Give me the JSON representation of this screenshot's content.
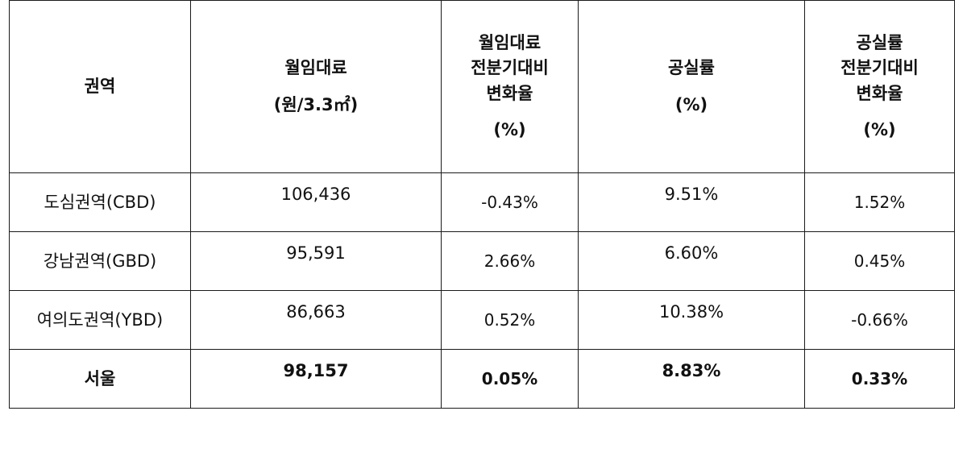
{
  "table": {
    "headers": [
      {
        "lines": [
          "권역"
        ]
      },
      {
        "lines": [
          "월임대료",
          "(원/3.3㎡)"
        ]
      },
      {
        "lines": [
          "월임대료",
          "전분기대비",
          "변화율",
          "(%)"
        ]
      },
      {
        "lines": [
          "공실률",
          "(%)"
        ]
      },
      {
        "lines": [
          "공실률",
          "전분기대비",
          "변화율",
          "(%)"
        ]
      }
    ],
    "rows": [
      {
        "region": "도심권역(CBD)",
        "rent": "106,436",
        "rent_change": "-0.43%",
        "vacancy": "9.51%",
        "vacancy_change": "1.52%"
      },
      {
        "region": "강남권역(GBD)",
        "rent": "95,591",
        "rent_change": "2.66%",
        "vacancy": "6.60%",
        "vacancy_change": "0.45%"
      },
      {
        "region": "여의도권역(YBD)",
        "rent": "86,663",
        "rent_change": "0.52%",
        "vacancy": "10.38%",
        "vacancy_change": "-0.66%"
      },
      {
        "region": "서울",
        "rent": "98,157",
        "rent_change": "0.05%",
        "vacancy": "8.83%",
        "vacancy_change": "0.33%"
      }
    ]
  }
}
